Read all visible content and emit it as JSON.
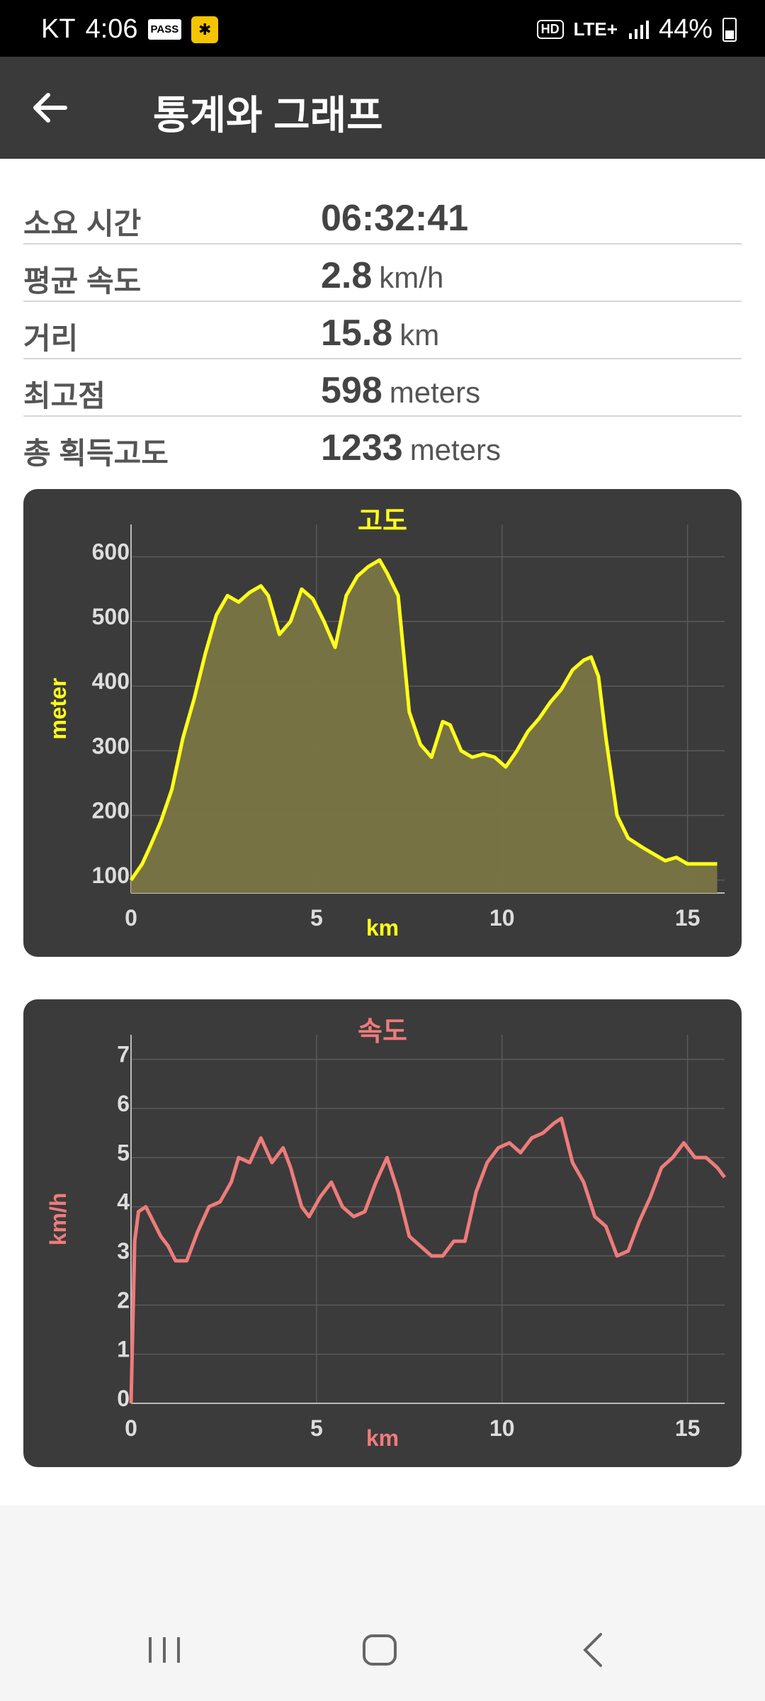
{
  "status_bar": {
    "carrier": "KT",
    "time": "4:06",
    "pass_label": "PASS",
    "network": "LTE+",
    "battery": "44%"
  },
  "app_bar": {
    "title": "통계와 그래프",
    "back_icon": "arrow-left-icon"
  },
  "stats": [
    {
      "label": "소요 시간",
      "value": "06:32:41",
      "unit": ""
    },
    {
      "label": "평균 속도",
      "value": "2.8",
      "unit": "km/h"
    },
    {
      "label": "거리",
      "value": "15.8",
      "unit": "km"
    },
    {
      "label": "최고점",
      "value": "598",
      "unit": "meters"
    },
    {
      "label": "총 획득고도",
      "value": "1233",
      "unit": "meters"
    }
  ],
  "colors": {
    "elevation": "#ffff1a",
    "elevation_fill": "#7a7544",
    "speed": "#ef7b7b",
    "card": "#3b3b3b",
    "app_bar": "#3a3a3a"
  },
  "chart_data": [
    {
      "type": "area",
      "title": "고도",
      "xlabel": "km",
      "ylabel": "meter",
      "xlim": [
        0,
        16
      ],
      "ylim": [
        80,
        650
      ],
      "x_ticks": [
        0,
        5,
        10,
        15
      ],
      "y_ticks": [
        100,
        200,
        300,
        400,
        500,
        600
      ],
      "grid": true,
      "series": [
        {
          "x": [
            0,
            0.3,
            0.5,
            0.8,
            1.1,
            1.4,
            1.7,
            2.0,
            2.3,
            2.6,
            2.9,
            3.2,
            3.5,
            3.7,
            4.0,
            4.3,
            4.6,
            4.9,
            5.2,
            5.5,
            5.8,
            6.1,
            6.4,
            6.7,
            6.9,
            7.2,
            7.5,
            7.8,
            8.1,
            8.4,
            8.6,
            8.9,
            9.2,
            9.5,
            9.8,
            10.1,
            10.4,
            10.7,
            11.0,
            11.3,
            11.6,
            11.9,
            12.2,
            12.4,
            12.6,
            12.8,
            13.1,
            13.4,
            13.8,
            14.1,
            14.4,
            14.7,
            15.0,
            15.3,
            15.6,
            15.8
          ],
          "y": [
            100,
            125,
            150,
            190,
            240,
            320,
            380,
            450,
            510,
            540,
            530,
            545,
            555,
            540,
            480,
            500,
            550,
            535,
            500,
            460,
            540,
            570,
            585,
            595,
            575,
            540,
            360,
            310,
            290,
            345,
            340,
            300,
            290,
            295,
            290,
            275,
            300,
            330,
            350,
            375,
            395,
            425,
            440,
            445,
            415,
            320,
            200,
            165,
            150,
            140,
            130,
            135,
            125,
            125,
            125,
            125
          ]
        }
      ]
    },
    {
      "type": "line",
      "title": "속도",
      "xlabel": "km",
      "ylabel": "km/h",
      "xlim": [
        0,
        16
      ],
      "ylim": [
        0,
        7.5
      ],
      "x_ticks": [
        0,
        5,
        10,
        15
      ],
      "y_ticks": [
        0,
        1,
        2,
        3,
        4,
        5,
        6,
        7
      ],
      "grid": true,
      "series": [
        {
          "x": [
            0,
            0.1,
            0.2,
            0.4,
            0.6,
            0.8,
            1.0,
            1.2,
            1.5,
            1.8,
            2.1,
            2.4,
            2.7,
            2.9,
            3.2,
            3.5,
            3.8,
            4.1,
            4.3,
            4.6,
            4.8,
            5.1,
            5.4,
            5.7,
            6.0,
            6.3,
            6.6,
            6.9,
            7.2,
            7.5,
            7.8,
            8.1,
            8.4,
            8.7,
            9.0,
            9.3,
            9.6,
            9.9,
            10.2,
            10.5,
            10.8,
            11.1,
            11.4,
            11.6,
            11.9,
            12.2,
            12.5,
            12.8,
            13.1,
            13.4,
            13.7,
            14.0,
            14.3,
            14.6,
            14.9,
            15.2,
            15.5,
            15.8,
            16.0
          ],
          "y": [
            0,
            3.3,
            3.9,
            4.0,
            3.7,
            3.4,
            3.2,
            2.9,
            2.9,
            3.5,
            4.0,
            4.1,
            4.5,
            5.0,
            4.9,
            5.4,
            4.9,
            5.2,
            4.8,
            4.0,
            3.8,
            4.2,
            4.5,
            4.0,
            3.8,
            3.9,
            4.5,
            5.0,
            4.3,
            3.4,
            3.2,
            3.0,
            3.0,
            3.3,
            3.3,
            4.3,
            4.9,
            5.2,
            5.3,
            5.1,
            5.4,
            5.5,
            5.7,
            5.8,
            4.9,
            4.5,
            3.8,
            3.6,
            3.0,
            3.1,
            3.7,
            4.2,
            4.8,
            5.0,
            5.3,
            5.0,
            5.0,
            4.8,
            4.6
          ]
        }
      ]
    }
  ]
}
